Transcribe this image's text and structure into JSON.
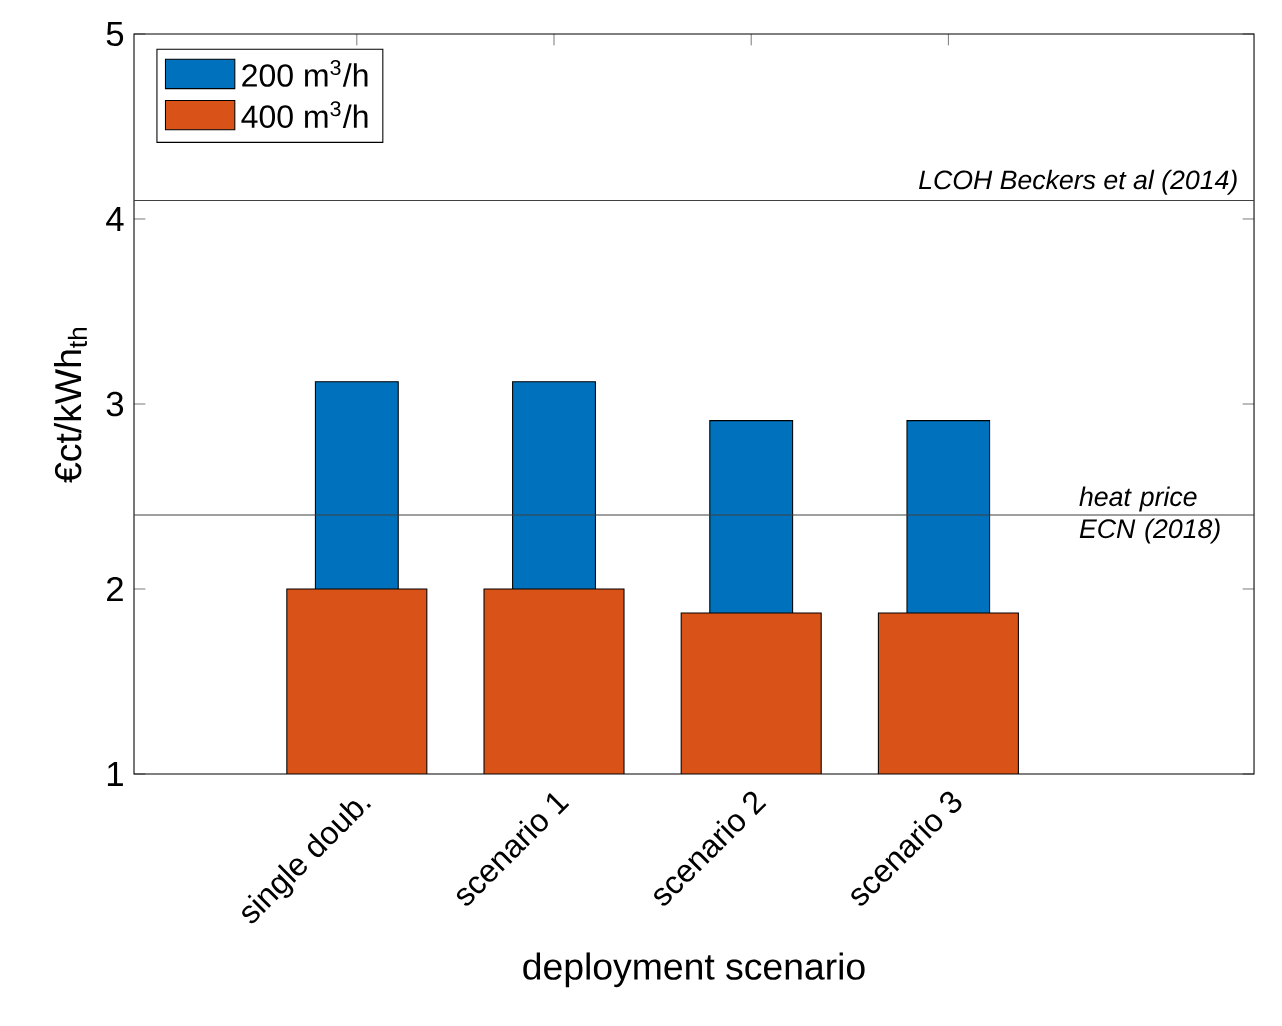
{
  "chart_data": {
    "type": "bar",
    "xlabel": "deployment scenario",
    "ylabel": "€ct/kWh$_{th}$",
    "categories": [
      "single doub.",
      "scenario 1",
      "scenario 2",
      "scenario 3"
    ],
    "series": [
      {
        "name": "200 m$^{3}$/h",
        "color": "#0072bd",
        "values": [
          3.12,
          3.12,
          2.91,
          2.91
        ]
      },
      {
        "name": "400 m$^{3}$/h",
        "color": "#d95319",
        "values": [
          2.0,
          2.0,
          1.87,
          1.87
        ]
      }
    ],
    "ylim": [
      1,
      5
    ],
    "yticks": [
      1,
      2,
      3,
      4,
      5
    ],
    "legend": "top left",
    "ref_lines": [
      {
        "axis": "y",
        "value": 4.1,
        "label": "LCOH Beckers et al (2014)",
        "color": "#404040"
      },
      {
        "axis": "y",
        "value": 2.4,
        "label": "heat price ECN (2018)",
        "color": "#404040"
      }
    ]
  }
}
